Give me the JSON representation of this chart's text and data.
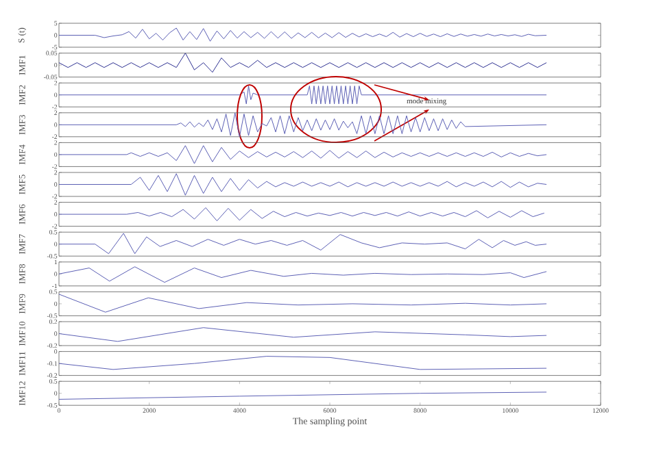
{
  "chart_data": [
    {
      "type": "line",
      "ylabel": "S (t)",
      "color": "#5a5eb4",
      "xlim": [
        0,
        12000
      ],
      "ylim": [
        -5,
        5
      ],
      "yticks": [
        -5,
        0,
        5
      ],
      "tick_labels": "y",
      "x": [
        0,
        800,
        1000,
        1200,
        1400,
        1550,
        1700,
        1850,
        2000,
        2150,
        2300,
        2450,
        2600,
        2750,
        2900,
        3050,
        3200,
        3350,
        3500,
        3650,
        3800,
        3950,
        4100,
        4250,
        4400,
        4550,
        4700,
        4850,
        5000,
        5150,
        5300,
        5450,
        5600,
        5750,
        5900,
        6050,
        6200,
        6350,
        6500,
        6650,
        6800,
        6950,
        7100,
        7250,
        7400,
        7550,
        7700,
        7850,
        8000,
        8150,
        8300,
        8450,
        8600,
        8750,
        8900,
        9050,
        9200,
        9350,
        9500,
        9650,
        9800,
        9950,
        10100,
        10250,
        10400,
        10550,
        10800
      ],
      "values": [
        0,
        0,
        -1,
        -0.3,
        0.2,
        1.5,
        -1.2,
        2.5,
        -1.5,
        0.8,
        -2,
        1,
        3,
        -2,
        1.5,
        -1.8,
        2.8,
        -2.5,
        1.8,
        -1.5,
        2,
        -1.2,
        1.5,
        -1,
        1.2,
        -1.3,
        1.5,
        -1.2,
        1.4,
        -1.3,
        1,
        -1,
        1.2,
        -1.1,
        0.9,
        -1,
        1.1,
        -0.9,
        0.8,
        -0.7,
        0.6,
        -0.6,
        0.5,
        -0.6,
        1.2,
        -0.8,
        0.7,
        -0.6,
        0.8,
        -0.5,
        0.5,
        -0.6,
        0.6,
        -0.5,
        0.5,
        -0.4,
        0.3,
        -0.4,
        0.5,
        -0.3,
        0.3,
        -0.3,
        0.2,
        -0.5,
        0.4,
        -0.2,
        0
      ]
    },
    {
      "type": "line",
      "ylabel": "IMF1",
      "color": "#2e3192",
      "xlim": [
        0,
        12000
      ],
      "ylim": [
        -0.05,
        0.05
      ],
      "yticks": [
        -0.05,
        0,
        0.05
      ],
      "tick_labels": "y",
      "x": [
        0,
        200,
        400,
        600,
        800,
        1000,
        1200,
        1400,
        1600,
        1800,
        2000,
        2200,
        2400,
        2600,
        2800,
        3000,
        3200,
        3400,
        3600,
        3800,
        4000,
        4200,
        4400,
        4600,
        4800,
        5000,
        5200,
        5400,
        5600,
        5800,
        6000,
        6200,
        6400,
        6600,
        6800,
        7000,
        7200,
        7400,
        7600,
        7800,
        8000,
        8200,
        8400,
        8600,
        8800,
        9000,
        9200,
        9400,
        9600,
        9800,
        10000,
        10200,
        10400,
        10600,
        10800
      ],
      "values": [
        0.01,
        -0.01,
        0.01,
        -0.01,
        0.01,
        -0.01,
        0.01,
        -0.01,
        0.01,
        -0.01,
        0.01,
        -0.01,
        0.01,
        -0.01,
        0.05,
        -0.02,
        0.01,
        -0.03,
        0.03,
        -0.01,
        0.01,
        -0.01,
        0.02,
        -0.01,
        0.01,
        -0.01,
        0.01,
        -0.01,
        0.01,
        -0.01,
        0.01,
        -0.01,
        0.01,
        -0.01,
        0.01,
        -0.01,
        0.01,
        -0.01,
        0.01,
        -0.01,
        0.01,
        -0.01,
        0.01,
        -0.01,
        0.01,
        -0.01,
        0.01,
        -0.01,
        0.01,
        -0.01,
        0.01,
        -0.01,
        0.01,
        -0.01,
        0.01
      ]
    },
    {
      "type": "line",
      "ylabel": "IMF2",
      "color": "#5a5eb4",
      "xlim": [
        0,
        12000
      ],
      "ylim": [
        -2,
        2
      ],
      "yticks": [
        -2,
        0,
        2
      ],
      "tick_labels": "y",
      "annotations": [
        "mode mixing"
      ],
      "x": [
        0,
        4000,
        4100,
        4150,
        4200,
        4250,
        4300,
        4400,
        5500,
        5550,
        5600,
        5650,
        5700,
        5750,
        5800,
        5850,
        5900,
        5950,
        6000,
        6050,
        6100,
        6150,
        6200,
        6250,
        6300,
        6350,
        6400,
        6450,
        6500,
        6550,
        6600,
        6650,
        6700,
        10800
      ],
      "values": [
        0,
        0,
        0.5,
        -1.5,
        1.5,
        -0.8,
        0.3,
        0,
        0,
        1.5,
        -1.5,
        1.5,
        -1.5,
        1.5,
        -1.5,
        1.5,
        -1.5,
        1.5,
        -1.5,
        1.5,
        -1.5,
        1.5,
        -1.5,
        1.5,
        -1.5,
        1.5,
        -1.5,
        1.5,
        -1.5,
        1.5,
        -1.5,
        1.5,
        0,
        0
      ]
    },
    {
      "type": "line",
      "ylabel": "IMF3",
      "color": "#5a5eb4",
      "xlim": [
        0,
        12000
      ],
      "ylim": [
        -2,
        2
      ],
      "yticks": [
        -2,
        0,
        2
      ],
      "tick_labels": "y",
      "x": [
        0,
        2600,
        2700,
        2800,
        2900,
        3000,
        3100,
        3200,
        3300,
        3400,
        3500,
        3600,
        3700,
        3800,
        3900,
        4000,
        4100,
        4200,
        4300,
        4400,
        4500,
        4600,
        4700,
        4800,
        4900,
        5000,
        5100,
        5200,
        5300,
        5400,
        5500,
        5600,
        5700,
        5800,
        5900,
        6000,
        6100,
        6200,
        6300,
        6400,
        6500,
        6600,
        6700,
        6800,
        6900,
        7000,
        7100,
        7200,
        7300,
        7400,
        7500,
        7600,
        7700,
        7800,
        7900,
        8000,
        8100,
        8200,
        8300,
        8400,
        8500,
        8600,
        8700,
        8800,
        8900,
        9000,
        10800
      ],
      "values": [
        0,
        0,
        0.3,
        -0.3,
        0.5,
        -0.4,
        0.3,
        -0.3,
        0.8,
        -0.8,
        1,
        -1.2,
        1.8,
        -1.8,
        2,
        -2,
        1.8,
        -1.8,
        1.5,
        -1.2,
        0.2,
        -0.2,
        1.2,
        -1.2,
        1.5,
        -1.5,
        1.5,
        -1.2,
        1.2,
        -1,
        0.8,
        -1,
        1,
        -0.9,
        0.8,
        -0.8,
        1,
        -0.9,
        0.6,
        -0.5,
        0.5,
        -1.5,
        1.5,
        -1.5,
        1.5,
        -1.5,
        1.5,
        -1.5,
        1.5,
        -1.5,
        1.5,
        -1.5,
        1.5,
        -1.2,
        1.2,
        -1.2,
        1.2,
        -1,
        1,
        -1,
        1,
        -0.8,
        0.8,
        -0.6,
        0.5,
        -0.3,
        0
      ]
    },
    {
      "type": "line",
      "ylabel": "IMF4",
      "color": "#5a5eb4",
      "xlim": [
        0,
        12000
      ],
      "ylim": [
        -2,
        2
      ],
      "yticks": [
        -2,
        0,
        2
      ],
      "tick_labels": "y",
      "x": [
        0,
        1500,
        1600,
        1800,
        2000,
        2200,
        2400,
        2600,
        2800,
        3000,
        3200,
        3400,
        3600,
        3800,
        4000,
        4200,
        4400,
        4600,
        4800,
        5000,
        5200,
        5400,
        5600,
        5800,
        6000,
        6200,
        6400,
        6600,
        6800,
        7000,
        7200,
        7400,
        7600,
        7800,
        8000,
        8200,
        8400,
        8600,
        8800,
        9000,
        9200,
        9400,
        9600,
        9800,
        10000,
        10200,
        10400,
        10600,
        10800
      ],
      "values": [
        0,
        0,
        0.3,
        -0.3,
        0.3,
        -0.3,
        0.3,
        -1,
        1.5,
        -1.5,
        1.5,
        -1.2,
        1.2,
        -0.8,
        0.6,
        -0.5,
        0.5,
        -0.4,
        0.4,
        -0.4,
        0.5,
        -0.5,
        0.6,
        -0.6,
        0.7,
        -0.6,
        0.5,
        -0.5,
        0.6,
        -0.5,
        0.4,
        -0.4,
        0.3,
        -0.3,
        0.3,
        -0.3,
        0.3,
        -0.3,
        0.3,
        -0.3,
        0.3,
        -0.3,
        0.4,
        -0.4,
        0.3,
        -0.3,
        0.2,
        -0.2,
        0
      ]
    },
    {
      "type": "line",
      "ylabel": "IMF5",
      "color": "#5a5eb4",
      "xlim": [
        0,
        12000
      ],
      "ylim": [
        -2,
        2
      ],
      "yticks": [
        -2,
        0,
        2
      ],
      "tick_labels": "y",
      "x": [
        0,
        1600,
        1800,
        2000,
        2200,
        2400,
        2600,
        2800,
        3000,
        3200,
        3400,
        3600,
        3800,
        4000,
        4200,
        4400,
        4600,
        4800,
        5000,
        5200,
        5400,
        5600,
        5800,
        6000,
        6200,
        6400,
        6600,
        6800,
        7000,
        7200,
        7400,
        7600,
        7800,
        8000,
        8200,
        8400,
        8600,
        8800,
        9000,
        9200,
        9400,
        9600,
        9800,
        10000,
        10200,
        10400,
        10600,
        10800
      ],
      "values": [
        0,
        0,
        1.2,
        -1,
        1.5,
        -1.2,
        1.8,
        -1.8,
        1.5,
        -1.5,
        1.2,
        -1.2,
        1,
        -1,
        0.8,
        -0.6,
        0.5,
        -0.4,
        0.3,
        -0.3,
        0.4,
        -0.3,
        0.3,
        -0.3,
        0.4,
        -0.4,
        0.3,
        -0.3,
        0.3,
        -0.3,
        0.4,
        -0.3,
        0.3,
        -0.3,
        0.3,
        -0.3,
        0.5,
        -0.4,
        0.3,
        -0.3,
        0.4,
        -0.4,
        0.5,
        -0.5,
        0.4,
        -0.4,
        0.2,
        0
      ]
    },
    {
      "type": "line",
      "ylabel": "IMF6",
      "color": "#5a5eb4",
      "xlim": [
        0,
        12000
      ],
      "ylim": [
        -2,
        2
      ],
      "yticks": [
        -2,
        0,
        2
      ],
      "tick_labels": "y",
      "x": [
        0,
        1500,
        1750,
        2000,
        2250,
        2500,
        2750,
        3000,
        3250,
        3500,
        3750,
        4000,
        4250,
        4500,
        4750,
        5000,
        5250,
        5500,
        5750,
        6000,
        6250,
        6500,
        6750,
        7000,
        7250,
        7500,
        7750,
        8000,
        8250,
        8500,
        8750,
        9000,
        9250,
        9500,
        9750,
        10000,
        10250,
        10500,
        10750
      ],
      "values": [
        0,
        0,
        0.3,
        -0.3,
        0.3,
        -0.4,
        0.8,
        -0.8,
        1.1,
        -1.1,
        1,
        -1,
        0.8,
        -0.7,
        0.5,
        -0.4,
        0.3,
        -0.3,
        0.2,
        -0.2,
        0.3,
        -0.3,
        0.3,
        -0.2,
        0.3,
        -0.3,
        0.4,
        -0.3,
        0.3,
        -0.3,
        0.3,
        -0.4,
        0.6,
        -0.6,
        0.5,
        -0.5,
        0.6,
        -0.4,
        0.2
      ]
    },
    {
      "type": "line",
      "ylabel": "IMF7",
      "color": "#5a5eb4",
      "xlim": [
        0,
        12000
      ],
      "ylim": [
        -0.5,
        0.5
      ],
      "yticks": [
        -0.5,
        0,
        0.5
      ],
      "tick_labels": "y",
      "x": [
        0,
        800,
        1100,
        1430,
        1680,
        1940,
        2240,
        2600,
        2950,
        3300,
        3650,
        4000,
        4350,
        4700,
        5050,
        5400,
        5800,
        6230,
        6700,
        7100,
        7600,
        8100,
        8600,
        9000,
        9300,
        9600,
        9850,
        10100,
        10350,
        10550,
        10800
      ],
      "values": [
        0,
        0,
        -0.4,
        0.45,
        -0.4,
        0.3,
        -0.1,
        0.15,
        -0.1,
        0.2,
        -0.05,
        0.2,
        0,
        0.15,
        -0.05,
        0.15,
        -0.25,
        0.4,
        0.05,
        -0.15,
        0.05,
        0,
        0.05,
        -0.2,
        0.2,
        -0.15,
        0.15,
        -0.05,
        0.1,
        -0.05,
        0
      ]
    },
    {
      "type": "line",
      "ylabel": "IMF8",
      "color": "#5a5eb4",
      "xlim": [
        0,
        12000
      ],
      "ylim": [
        -1,
        1
      ],
      "yticks": [
        -1,
        0,
        1
      ],
      "tick_labels": "y",
      "x": [
        0,
        670,
        1120,
        1680,
        2340,
        3000,
        3600,
        4250,
        4980,
        5600,
        6300,
        7000,
        7800,
        8600,
        9400,
        10000,
        10300,
        10800
      ],
      "values": [
        0,
        0.5,
        -0.6,
        0.6,
        -0.7,
        0.5,
        -0.3,
        0.3,
        -0.2,
        0.05,
        -0.1,
        0.05,
        -0.05,
        0,
        -0.05,
        0.1,
        -0.3,
        0.2
      ]
    },
    {
      "type": "line",
      "ylabel": "IMF9",
      "color": "#5a5eb4",
      "xlim": [
        0,
        12000
      ],
      "ylim": [
        -0.5,
        0.5
      ],
      "yticks": [
        -0.5,
        0,
        0.5
      ],
      "tick_labels": "y",
      "x": [
        0,
        1030,
        1980,
        3100,
        4160,
        5300,
        6500,
        7800,
        9000,
        10000,
        10800
      ],
      "values": [
        0.4,
        -0.35,
        0.25,
        -0.2,
        0.05,
        -0.05,
        0,
        -0.05,
        0.02,
        -0.05,
        0
      ]
    },
    {
      "type": "line",
      "ylabel": "IMF10",
      "color": "#5a5eb4",
      "xlim": [
        0,
        12000
      ],
      "ylim": [
        -0.2,
        0.2
      ],
      "yticks": [
        -0.2,
        0,
        0.2
      ],
      "tick_labels": "y",
      "x": [
        0,
        1300,
        3200,
        5200,
        7000,
        9000,
        10000,
        10800
      ],
      "values": [
        0,
        -0.13,
        0.1,
        -0.06,
        0.03,
        -0.02,
        -0.05,
        -0.03
      ]
    },
    {
      "type": "line",
      "ylabel": "IMF11",
      "color": "#5a5eb4",
      "xlim": [
        0,
        12000
      ],
      "ylim": [
        -0.2,
        0
      ],
      "yticks": [
        -0.2,
        -0.1,
        0
      ],
      "tick_labels": "y",
      "x": [
        0,
        1200,
        3000,
        4600,
        6000,
        8000,
        10800
      ],
      "values": [
        -0.1,
        -0.15,
        -0.1,
        -0.04,
        -0.05,
        -0.15,
        -0.14
      ]
    },
    {
      "type": "line",
      "ylabel": "IMF12",
      "xlabel": "The sampling point",
      "color": "#5a5eb4",
      "xlim": [
        0,
        12000
      ],
      "ylim": [
        -0.5,
        0.5
      ],
      "yticks": [
        -0.5,
        0,
        0.5
      ],
      "xticks": [
        0,
        2000,
        4000,
        6000,
        8000,
        10000,
        12000
      ],
      "x": [
        0,
        4000,
        8000,
        10800
      ],
      "values": [
        -0.25,
        -0.12,
        0,
        0.05
      ]
    }
  ]
}
